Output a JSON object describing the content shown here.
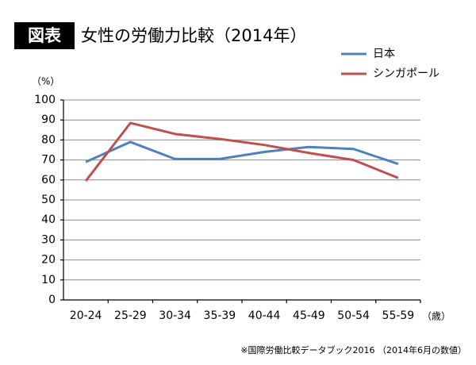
{
  "chart_data": {
    "type": "line",
    "badge": "図表",
    "title": "女性の労働力比較（2014年）",
    "y_unit": "（%）",
    "x_unit": "（歳）",
    "source": "※国際労働比較データブック2016 （2014年6月の数値）",
    "categories": [
      "20-24",
      "25-29",
      "30-34",
      "35-39",
      "40-44",
      "45-49",
      "50-54",
      "55-59"
    ],
    "series": [
      {
        "name": "日本",
        "color": "#4f81bd",
        "values": [
          69,
          79,
          70.5,
          70.5,
          74,
          76.5,
          75.5,
          68
        ]
      },
      {
        "name": "シンガポール",
        "color": "#c0504d",
        "values": [
          59.5,
          88.5,
          83,
          80.5,
          77.5,
          73.5,
          70,
          61
        ]
      }
    ],
    "ylim": [
      0,
      100
    ],
    "yticks": [
      0,
      10,
      20,
      30,
      40,
      50,
      60,
      70,
      80,
      90,
      100
    ],
    "grid": true,
    "legend": "top-right"
  }
}
